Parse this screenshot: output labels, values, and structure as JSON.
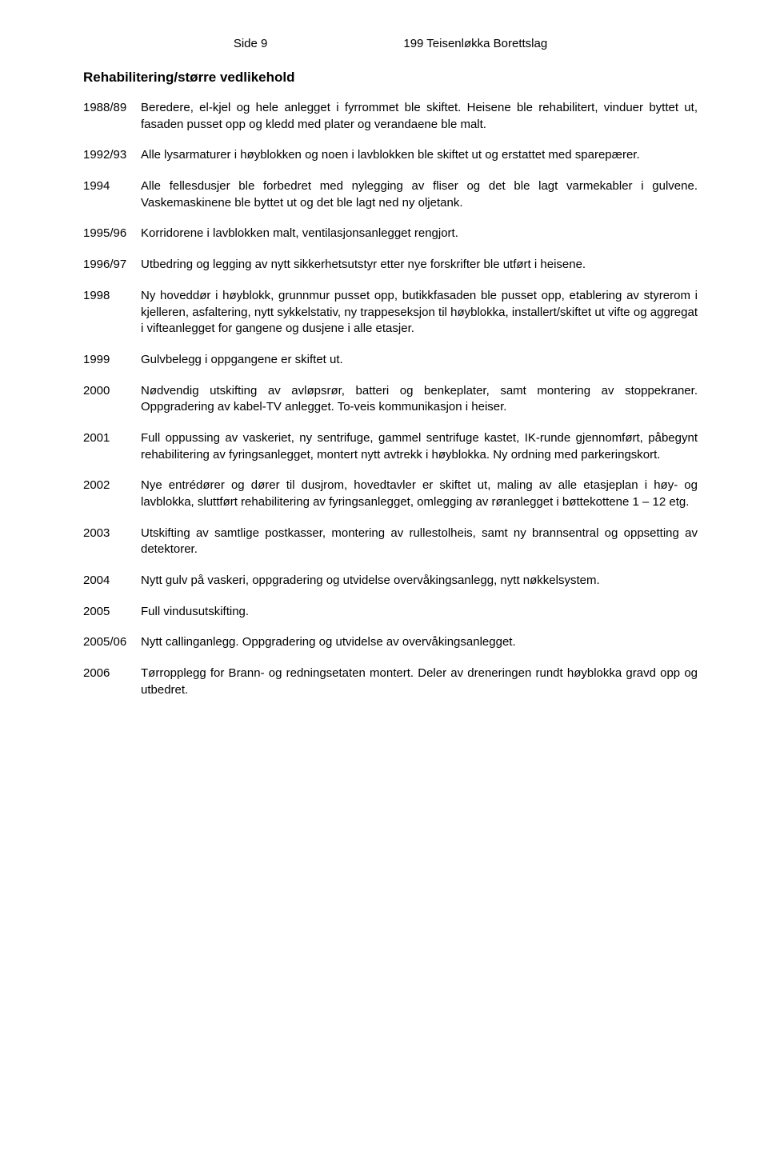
{
  "header": {
    "page_label": "Side 9",
    "doc_title": "199 Teisenløkka Borettslag"
  },
  "section_heading": "Rehabilitering/større vedlikehold",
  "entries": [
    {
      "year": "1988/89",
      "text": "Beredere, el-kjel og hele anlegget i fyrrommet ble skiftet. Heisene ble rehabilitert, vinduer byttet ut, fasaden pusset opp og kledd med plater og verandaene ble malt."
    },
    {
      "year": "1992/93",
      "text": "Alle lysarmaturer i høyblokken og noen i lavblokken ble skiftet ut og erstattet med sparepærer."
    },
    {
      "year": "1994",
      "text": "Alle fellesdusjer ble forbedret med nylegging av fliser og det ble lagt varmekabler i gulvene. Vaskemaskinene ble byttet ut og det ble lagt ned ny oljetank."
    },
    {
      "year": "1995/96",
      "text": "Korridorene i lavblokken malt, ventilasjonsanlegget rengjort."
    },
    {
      "year": "1996/97",
      "text": "Utbedring og legging av nytt sikkerhetsutstyr etter nye forskrifter ble utført i heisene."
    },
    {
      "year": "1998",
      "text": "Ny hoveddør i høyblokk, grunnmur pusset opp, butikkfasaden ble pusset opp, etablering av styrerom i kjelleren, asfaltering, nytt sykkelstativ, ny trappeseksjon til høyblokka, installert/skiftet ut vifte og aggregat i vifteanlegget for gangene og dusjene i alle etasjer."
    },
    {
      "year": "1999",
      "text": "Gulvbelegg i oppgangene er skiftet ut."
    },
    {
      "year": "2000",
      "text": "Nødvendig utskifting av avløpsrør, batteri og benkeplater, samt montering av stoppekraner. Oppgradering av kabel-TV anlegget. To-veis kommunikasjon i heiser."
    },
    {
      "year": "2001",
      "text": "Full oppussing av vaskeriet, ny sentrifuge, gammel sentrifuge kastet, IK-runde gjennomført, påbegynt rehabilitering av fyringsanlegget, montert nytt avtrekk i høyblokka. Ny ordning med parkeringskort."
    },
    {
      "year": "2002",
      "text": "Nye entrédører og dører til dusjrom, hovedtavler er skiftet ut, maling av alle etasjeplan i høy- og lavblokka, sluttført rehabilitering av fyringsanlegget, omlegging av røranlegget i bøttekottene 1 – 12 etg."
    },
    {
      "year": "2003",
      "text": "Utskifting av samtlige postkasser, montering av rullestolheis, samt ny brannsentral og oppsetting av detektorer."
    },
    {
      "year": "2004",
      "text": "Nytt gulv på vaskeri, oppgradering og utvidelse overvåkingsanlegg, nytt nøkkelsystem."
    },
    {
      "year": "2005",
      "text": "Full vindusutskifting."
    },
    {
      "year": "2005/06",
      "text": "Nytt callinganlegg. Oppgradering og utvidelse av overvåkingsanlegget."
    },
    {
      "year": "2006",
      "text": "Tørropplegg for Brann- og redningsetaten montert. Deler av dreneringen rundt høyblokka gravd opp og utbedret."
    }
  ]
}
